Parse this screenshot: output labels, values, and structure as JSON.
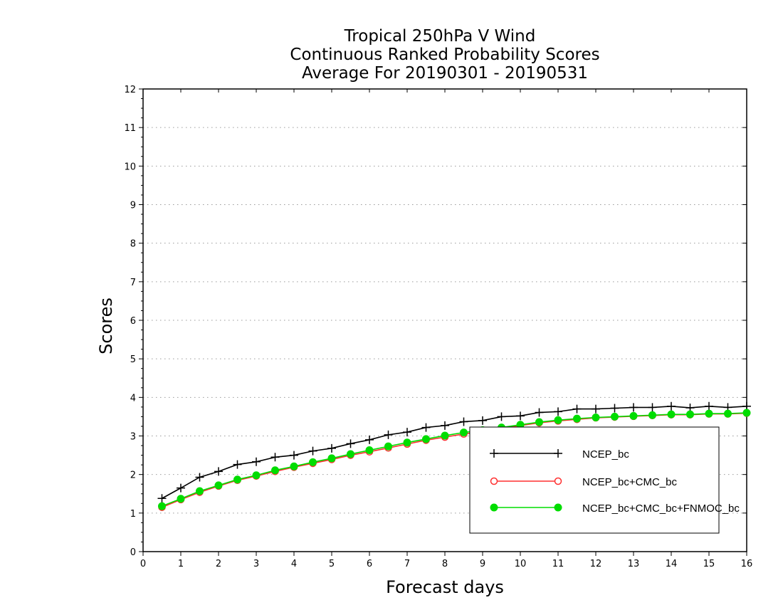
{
  "chart_data": {
    "type": "line",
    "title_lines": [
      "Tropical 250hPa V Wind",
      "Continuous Ranked Probability Scores",
      "Average For 20190301 - 20190531"
    ],
    "xlabel": "Forecast days",
    "ylabel": "Scores",
    "xlim": [
      0,
      16
    ],
    "ylim": [
      0,
      12
    ],
    "xticks": [
      0,
      1,
      2,
      3,
      4,
      5,
      6,
      7,
      8,
      9,
      10,
      11,
      12,
      13,
      14,
      15,
      16
    ],
    "yticks": [
      0,
      1,
      2,
      3,
      4,
      5,
      6,
      7,
      8,
      9,
      10,
      11,
      12
    ],
    "grid": "horizontal dotted",
    "legend_placement": "bottom-right",
    "x": [
      0.5,
      1,
      1.5,
      2,
      2.5,
      3,
      3.5,
      4,
      4.5,
      5,
      5.5,
      6,
      6.5,
      7,
      7.5,
      8,
      8.5,
      9,
      9.5,
      10,
      10.5,
      11,
      11.5,
      12,
      12.5,
      13,
      13.5,
      14,
      14.5,
      15,
      15.5,
      16
    ],
    "series": [
      {
        "name": "NCEP_bc",
        "color": "#000000",
        "marker": "plus",
        "values": [
          1.38,
          1.65,
          1.93,
          2.08,
          2.26,
          2.33,
          2.45,
          2.5,
          2.61,
          2.68,
          2.8,
          2.9,
          3.03,
          3.1,
          3.22,
          3.27,
          3.37,
          3.4,
          3.5,
          3.52,
          3.61,
          3.63,
          3.7,
          3.7,
          3.72,
          3.74,
          3.74,
          3.77,
          3.73,
          3.77,
          3.74,
          3.77
        ]
      },
      {
        "name": "NCEP_bc+CMC_bc",
        "color": "#ff3030",
        "marker": "open-circle",
        "values": [
          1.15,
          1.35,
          1.54,
          1.7,
          1.85,
          1.96,
          2.08,
          2.19,
          2.29,
          2.39,
          2.5,
          2.59,
          2.69,
          2.79,
          2.89,
          2.97,
          3.05,
          3.12,
          3.2,
          3.27,
          3.34,
          3.39,
          3.43,
          3.47,
          3.49,
          3.51,
          3.53,
          3.55,
          3.55,
          3.57,
          3.57,
          3.59
        ]
      },
      {
        "name": "NCEP_bc+CMC_bc+FNMOC_bc",
        "color": "#00dd00",
        "marker": "filled-circle",
        "values": [
          1.18,
          1.37,
          1.57,
          1.72,
          1.87,
          1.98,
          2.11,
          2.21,
          2.32,
          2.42,
          2.53,
          2.63,
          2.73,
          2.83,
          2.92,
          3.01,
          3.09,
          3.15,
          3.22,
          3.29,
          3.36,
          3.41,
          3.45,
          3.48,
          3.5,
          3.52,
          3.54,
          3.56,
          3.56,
          3.58,
          3.58,
          3.6
        ]
      }
    ]
  }
}
